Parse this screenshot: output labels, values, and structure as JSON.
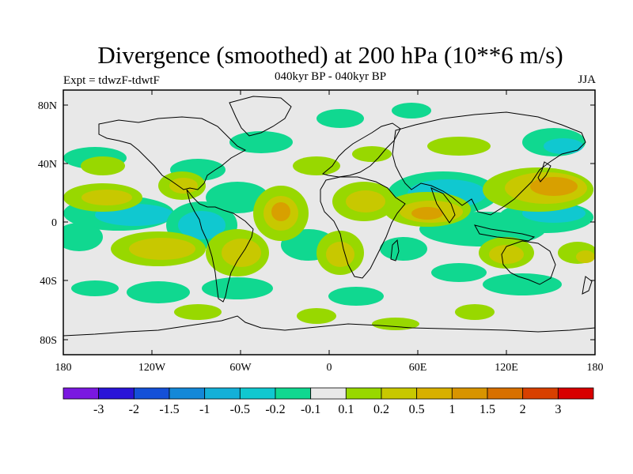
{
  "header": {
    "title": "Divergence (smoothed) at 200 hPa (10**6 m/s)",
    "subtitle": "040kyr BP - 040kyr BP",
    "experiment": "Expt = tdwzF-tdwtF",
    "season": "JJA"
  },
  "axes": {
    "lat_labels": [
      "80N",
      "40N",
      "0",
      "40S",
      "80S"
    ],
    "lon_labels": [
      "180",
      "120W",
      "60W",
      "0",
      "60E",
      "120E",
      "180"
    ]
  },
  "colorbar": {
    "colors": [
      "#7a18e0",
      "#2a14d8",
      "#1450d8",
      "#1488d8",
      "#14b0d8",
      "#10c8d0",
      "#10d890",
      "#e8e8e8",
      "#98d800",
      "#c8c800",
      "#d8b000",
      "#d89400",
      "#d87000",
      "#d84000",
      "#d80000"
    ],
    "labels": [
      "-3",
      "-2",
      "-1.5",
      "-1",
      "-0.5",
      "-0.2",
      "-0.1",
      "0.1",
      "0.2",
      "0.5",
      "1",
      "1.5",
      "2",
      "3"
    ]
  },
  "colors": {
    "neutral": "#e8e8e8",
    "pos_weak": "#98d800",
    "pos_mid": "#c8c800",
    "pos_strong": "#d8a000",
    "pos_max": "#e07800",
    "neg_weak": "#10d890",
    "neg_mid": "#10c8d0",
    "neg_strong": "#14b0d8",
    "coast": "#000000"
  }
}
